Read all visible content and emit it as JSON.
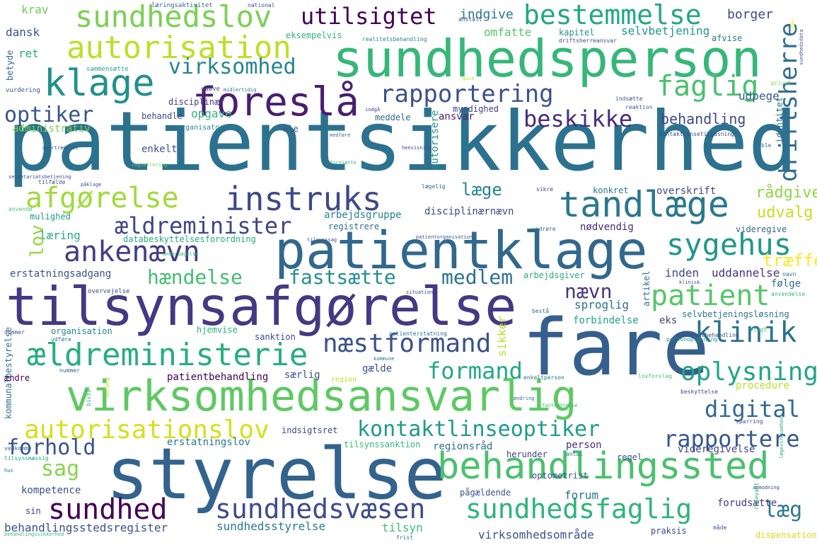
{
  "words": [
    {
      "text": "patientsikkerhed",
      "color": "#2c728e"
    },
    {
      "text": "sundhedsperson",
      "color": "#35b779"
    },
    {
      "text": "patientklage",
      "color": "#31688e"
    },
    {
      "text": "fare",
      "color": "#355f8d"
    },
    {
      "text": "tilsynsafgørelse",
      "color": "#443983"
    },
    {
      "text": "virksomhedsansvarlig",
      "color": "#5ec962"
    },
    {
      "text": "styrelse",
      "color": "#33638d"
    },
    {
      "text": "behandlingssted",
      "color": "#4ac16d"
    },
    {
      "text": "foreslå",
      "color": "#481f70"
    },
    {
      "text": "klage",
      "color": "#21918c"
    },
    {
      "text": "autorisation",
      "color": "#bddf26"
    },
    {
      "text": "sundhedslov",
      "color": "#7ad151"
    },
    {
      "text": "utilsigtet",
      "color": "#440154"
    },
    {
      "text": "bestemmelse",
      "color": "#22a884"
    },
    {
      "text": "instruks",
      "color": "#3e4989"
    },
    {
      "text": "tandlæge",
      "color": "#2a788e"
    },
    {
      "text": "afgørelse",
      "color": "#a0da39"
    },
    {
      "text": "ankenævn",
      "color": "#433e85"
    },
    {
      "text": "ældreministerie",
      "color": "#28ae80"
    },
    {
      "text": "ældreminister",
      "color": "#414487"
    },
    {
      "text": "sygehus",
      "color": "#1f988b"
    },
    {
      "text": "klinik",
      "color": "#2c728e"
    },
    {
      "text": "næstformand",
      "color": "#3b528b"
    },
    {
      "text": "sundhed",
      "color": "#440154"
    },
    {
      "text": "sundhedsvæsen",
      "color": "#3e4c8a"
    },
    {
      "text": "sundhedsfaglig",
      "color": "#2fb47c"
    },
    {
      "text": "autorisationslov",
      "color": "#d2e21b"
    },
    {
      "text": "kontaktlinseoptiker",
      "color": "#1e9b8a"
    },
    {
      "text": "rapportering",
      "color": "#3b528b"
    },
    {
      "text": "driftsherre",
      "color": "#2e6e8e"
    },
    {
      "text": "faglig",
      "color": "#48c16e"
    },
    {
      "text": "beskikke",
      "color": "#472d7b"
    },
    {
      "text": "virksomhed",
      "color": "#25858e"
    },
    {
      "text": "optiker",
      "color": "#39568c"
    },
    {
      "text": "patient",
      "color": "#56c667"
    },
    {
      "text": "oplysning",
      "color": "#21a685"
    },
    {
      "text": "digital",
      "color": "#31688e"
    },
    {
      "text": "rapportere",
      "color": "#38588c"
    },
    {
      "text": "formand",
      "color": "#22a884"
    },
    {
      "text": "forhold",
      "color": "#3b528b"
    },
    {
      "text": "sag",
      "color": "#84d44b"
    },
    {
      "text": "læg",
      "color": "#2a788e"
    },
    {
      "text": "hændelse",
      "color": "#42be71"
    },
    {
      "text": "fastsætte",
      "color": "#21918c"
    },
    {
      "text": "medlem",
      "color": "#2c728e"
    },
    {
      "text": "lov",
      "color": "#93d741"
    },
    {
      "text": "nævn",
      "color": "#453781"
    },
    {
      "text": "læge",
      "color": "#25858e"
    },
    {
      "text": "behandling",
      "color": "#3e4989"
    },
    {
      "text": "rådgive",
      "color": "#8fd744"
    },
    {
      "text": "udvalg",
      "color": "#c2df23"
    },
    {
      "text": "træffe",
      "color": "#fde725"
    },
    {
      "text": "indgive",
      "color": "#2a788e"
    },
    {
      "text": "borger",
      "color": "#3e4989"
    },
    {
      "text": "omfatte",
      "color": "#54c568"
    },
    {
      "text": "selvbetjening",
      "color": "#1f998a"
    },
    {
      "text": "udpege",
      "color": "#38598c"
    },
    {
      "text": "eksempelvis",
      "color": "#2db27d"
    },
    {
      "text": "krav",
      "color": "#6ccd5a"
    },
    {
      "text": "dansk",
      "color": "#3b528b"
    },
    {
      "text": "ret",
      "color": "#25ac82"
    },
    {
      "text": "disciplinær",
      "color": "#433e85"
    },
    {
      "text": "behandle",
      "color": "#3e4989"
    },
    {
      "text": "opgave",
      "color": "#32b67a"
    },
    {
      "text": "ansvar",
      "color": "#482475"
    },
    {
      "text": "meddele",
      "color": "#31688e"
    },
    {
      "text": "myndighed",
      "color": "#433e85"
    },
    {
      "text": "autorisere",
      "color": "#21918c"
    },
    {
      "text": "administrativ",
      "color": "#7ad151"
    },
    {
      "text": "organisatorisk",
      "color": "#23898e"
    },
    {
      "text": "ale",
      "color": "#38588c"
    },
    {
      "text": "enkelt",
      "color": "#3b528b"
    },
    {
      "text": "konkret",
      "color": "#2a788e"
    },
    {
      "text": "overskrift",
      "color": "#414487"
    },
    {
      "text": "arbejdsgruppe",
      "color": "#27808e"
    },
    {
      "text": "disciplinærnævn",
      "color": "#3e4a89"
    },
    {
      "text": "mulighed",
      "color": "#1f9a8a"
    },
    {
      "text": "nødvendig",
      "color": "#482878"
    },
    {
      "text": "videregive",
      "color": "#33638d"
    },
    {
      "text": "registrere",
      "color": "#2d708e"
    },
    {
      "text": "læring",
      "color": "#27ad81"
    },
    {
      "text": "databeskyttelsesforordning",
      "color": "#25ab82"
    },
    {
      "text": "erstatningsadgang",
      "color": "#3b528b"
    },
    {
      "text": "arbejdsgiver",
      "color": "#29af7f"
    },
    {
      "text": "inden",
      "color": "#3f4788"
    },
    {
      "text": "uddannelse",
      "color": "#46337e"
    },
    {
      "text": "følge",
      "color": "#2e6f8e"
    },
    {
      "text": "artikel",
      "color": "#2c728e"
    },
    {
      "text": "sproglig",
      "color": "#2d708e"
    },
    {
      "text": "eks",
      "color": "#414487"
    },
    {
      "text": "selvbetjeningsløsning",
      "color": "#2a778e"
    },
    {
      "text": "organisation",
      "color": "#23898e"
    },
    {
      "text": "hjemvise",
      "color": "#2ab07f"
    },
    {
      "text": "sanktion",
      "color": "#3e4a89"
    },
    {
      "text": "forbindelse",
      "color": "#20a386"
    },
    {
      "text": "sikker",
      "color": "#b5de2b"
    },
    {
      "text": "patientbehandling",
      "color": "#440154"
    },
    {
      "text": "særlig",
      "color": "#3b528b"
    },
    {
      "text": "gælde",
      "color": "#3b528b"
    },
    {
      "text": "erstatningslov",
      "color": "#2a788e"
    },
    {
      "text": "regionsråd",
      "color": "#2d708e"
    },
    {
      "text": "person",
      "color": "#46327e"
    },
    {
      "text": "indsigtsret",
      "color": "#3e4989"
    },
    {
      "text": "tilsynssanktion",
      "color": "#35b779"
    },
    {
      "text": "herunder",
      "color": "#433e85"
    },
    {
      "text": "optometrist",
      "color": "#3b528b"
    },
    {
      "text": "regel",
      "color": "#38588c"
    },
    {
      "text": "videregivelse",
      "color": "#404688"
    },
    {
      "text": "procedure",
      "color": "#bddf26"
    },
    {
      "text": "kompetence",
      "color": "#3b528b"
    },
    {
      "text": "sin",
      "color": "#453781"
    },
    {
      "text": "pågældende",
      "color": "#3b528b"
    },
    {
      "text": "forum",
      "color": "#2c728e"
    },
    {
      "text": "forudsætte",
      "color": "#443a83"
    },
    {
      "text": "behandlingsstedsregister",
      "color": "#3b528b"
    },
    {
      "text": "sundhedsstyrelse",
      "color": "#2a788e"
    },
    {
      "text": "tilsyn",
      "color": "#3dbc74"
    },
    {
      "text": "virksomhedsområde",
      "color": "#3b528b"
    },
    {
      "text": "praksis",
      "color": "#3e4989"
    },
    {
      "text": "dispensation",
      "color": "#d0e11c"
    },
    {
      "text": "betyde",
      "color": "#31688e"
    },
    {
      "text": "kommunalbestyrelse",
      "color": "#2d708e"
    },
    {
      "text": "ændre",
      "color": "#440154"
    },
    {
      "text": "identitet",
      "color": "#2c728e"
    },
    {
      "text": "kapitel",
      "color": "#21918c"
    },
    {
      "text": "afvise",
      "color": "#2a788e"
    },
    {
      "text": "læringsaktivitet",
      "color": "#31688e"
    },
    {
      "text": "national",
      "color": "#3b528b"
    },
    {
      "text": "realitetsbehandling",
      "color": "#25848e"
    },
    {
      "text": "driftsherreansvar",
      "color": "#3e4989"
    },
    {
      "text": "sammensætte",
      "color": "#22a785"
    },
    {
      "text": "vurdering",
      "color": "#3b528b"
    },
    {
      "text": "udøve",
      "color": "#414487"
    },
    {
      "text": "midlertidig",
      "color": "#2c728e"
    },
    {
      "text": "kontaktlinsetilpasning",
      "color": "#3e4a89"
    },
    {
      "text": "reaktion",
      "color": "#355f8d"
    },
    {
      "text": "indsætte",
      "color": "#3b528b"
    },
    {
      "text": "indgå",
      "color": "#443983"
    },
    {
      "text": "ble",
      "color": "#2a788e"
    },
    {
      "text": "privat",
      "color": "#6ece58"
    },
    {
      "text": "anvende",
      "color": "#48c16e"
    },
    {
      "text": "kommune",
      "color": "#2c728e"
    },
    {
      "text": "region",
      "color": "#bddf26"
    },
    {
      "text": "nummer",
      "color": "#31688e"
    },
    {
      "text": "dommer",
      "color": "#3b528b"
    },
    {
      "text": "udføre",
      "color": "#2c728e"
    },
    {
      "text": "enkeltperson",
      "color": "#2c728e"
    },
    {
      "text": "lovforslag",
      "color": "#46c06f"
    },
    {
      "text": "beskyttelse",
      "color": "#414487"
    },
    {
      "text": "tandlægebehandling",
      "color": "#3b528b"
    },
    {
      "text": "pligt",
      "color": "#35b779"
    },
    {
      "text": "klinisk",
      "color": "#3b528b"
    },
    {
      "text": "anvendelse",
      "color": "#35b779"
    },
    {
      "text": "overvejelse",
      "color": "#3e4989"
    },
    {
      "text": "vedkomme",
      "color": "#31688e"
    },
    {
      "text": "tilsynsmæssig",
      "color": "#22a884"
    },
    {
      "text": "antal",
      "color": "#2c728e"
    },
    {
      "text": "sparring",
      "color": "#3e4989"
    },
    {
      "text": "bistå",
      "color": "#2db27d"
    },
    {
      "text": "tilfælde",
      "color": "#3b528b"
    },
    {
      "text": "lægelig",
      "color": "#31688e"
    },
    {
      "text": "sikre",
      "color": "#3e4989"
    },
    {
      "text": "personoplysning",
      "color": "#21918c"
    },
    {
      "text": "patienterstatning",
      "color": "#2c728e"
    },
    {
      "text": "relevant",
      "color": "#22a884"
    },
    {
      "text": "måde",
      "color": "#3b528b"
    },
    {
      "text": "frist",
      "color": "#2c728e"
    },
    {
      "text": "bestå",
      "color": "#2c728e"
    },
    {
      "text": "situation",
      "color": "#3e4989"
    },
    {
      "text": "navn",
      "color": "#2c728e"
    },
    {
      "text": "vedrøre",
      "color": "#31688e"
    },
    {
      "text": "behandlingssikkerhed",
      "color": "#35b779"
    },
    {
      "text": "patientorganisation",
      "color": "#3b528b"
    },
    {
      "text": "undersøgelse",
      "color": "#35b779"
    },
    {
      "text": "sekretariatsbetjening",
      "color": "#3e4989"
    },
    {
      "text": "påklage",
      "color": "#3b528b"
    },
    {
      "text": "registrering",
      "color": "#6ece58"
    },
    {
      "text": "fortsætte",
      "color": "#35b779"
    },
    {
      "text": "medføre",
      "color": "#2c728e"
    },
    {
      "text": "omfang",
      "color": "#b5de2b"
    },
    {
      "text": "henvisning",
      "color": "#3e4989"
    },
    {
      "text": "fastsættelse",
      "color": "#35b779"
    },
    {
      "text": "tilsynssag",
      "color": "#3e4989"
    },
    {
      "text": "overtrædelse",
      "color": "#3b528b"
    },
    {
      "text": "ændring",
      "color": "#2c728e"
    },
    {
      "text": "anstalt",
      "color": "#3e4989"
    },
    {
      "text": "give",
      "color": "#bddf26"
    },
    {
      "text": "hus",
      "color": "#2c728e"
    },
    {
      "text": "skøn",
      "color": "#fde725"
    },
    {
      "text": "anmodning",
      "color": "#3e4989"
    },
    {
      "text": "lægevirksomhed",
      "color": "#22a884"
    },
    {
      "text": "sundhedsdata",
      "color": "#3b528b"
    },
    {
      "text": "sundhedsvæsenets",
      "color": "#2c728e"
    }
  ]
}
